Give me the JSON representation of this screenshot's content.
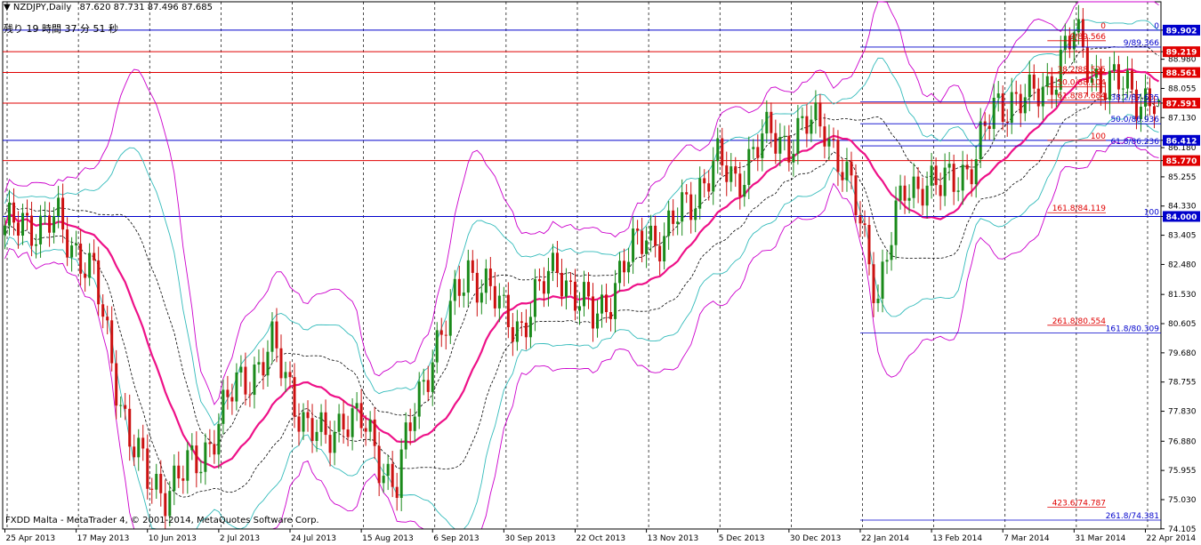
{
  "header": {
    "symbol": "NZDJPY,Daily",
    "ohlc": "87.620 87.731 87.496 87.685",
    "countdown": "残り 19 時間 37 分 51 秒"
  },
  "footer": "FXDD Malta - MetaTrader 4, © 2001-2014, MetaQuotes Software Corp.",
  "chart_data": {
    "type": "candlestick",
    "ylim": [
      74.1,
      90.8
    ],
    "price_ticks": [
      "89.902",
      "89.219",
      "88.980",
      "88.561",
      "88.055",
      "87.591",
      "87.130",
      "86.412",
      "86.180",
      "85.770",
      "85.255",
      "84.330",
      "84.000",
      "83.405",
      "82.480",
      "81.530",
      "80.605",
      "79.680",
      "78.755",
      "77.830",
      "76.880",
      "75.955",
      "75.030",
      "74.105"
    ],
    "price_tick_values": [
      89.902,
      89.219,
      88.98,
      88.561,
      88.055,
      87.591,
      87.13,
      86.412,
      86.18,
      85.77,
      85.255,
      84.33,
      84.0,
      83.405,
      82.48,
      81.53,
      80.605,
      79.68,
      78.755,
      77.83,
      76.88,
      75.955,
      75.03,
      74.105
    ],
    "highlighted_prices": [
      {
        "label": "89.902",
        "value": 89.902,
        "color": "#0000cc"
      },
      {
        "label": "89.219",
        "value": 89.219,
        "color": "#e00000"
      },
      {
        "label": "88.561",
        "value": 88.561,
        "color": "#e00000"
      },
      {
        "label": "87.591",
        "value": 87.591,
        "color": "#e00000"
      },
      {
        "label": "86.412",
        "value": 86.412,
        "color": "#0000cc"
      },
      {
        "label": "85.770",
        "value": 85.77,
        "color": "#e00000"
      },
      {
        "label": "84.000",
        "value": 84.0,
        "color": "#0000cc"
      }
    ],
    "date_labels": [
      "25 Apr 2013",
      "17 May 2013",
      "10 Jun 2013",
      "2 Jul 2013",
      "24 Jul 2013",
      "15 Aug 2013",
      "6 Sep 2013",
      "30 Sep 2013",
      "22 Oct 2013",
      "13 Nov 2013",
      "5 Dec 2013",
      "30 Dec 2013",
      "22 Jan 2014",
      "13 Feb 2014",
      "7 Mar 2014",
      "31 Mar 2014",
      "22 Apr 2014"
    ],
    "date_label_bars": [
      0,
      16,
      32,
      48,
      64,
      80,
      96,
      112,
      128,
      144,
      160,
      176,
      192,
      208,
      224,
      240,
      256
    ],
    "fibo_red": [
      {
        "label": "0",
        "value": 89.902
      },
      {
        "label": "9/89.566",
        "value": 89.566
      },
      {
        "label": "38.2/88.525",
        "value": 88.525
      },
      {
        "label": "50.0/88.104",
        "value": 88.104
      },
      {
        "label": "61.8/87.684",
        "value": 87.684
      },
      {
        "label": "100",
        "value": 86.412
      },
      {
        "label": "161.8/84.119",
        "value": 84.119
      },
      {
        "label": "261.8/80.554",
        "value": 80.554
      },
      {
        "label": "423.6/74.787",
        "value": 74.787
      }
    ],
    "fibo_blue": [
      {
        "label": "0",
        "value": 89.902
      },
      {
        "label": "9/89.366",
        "value": 89.366
      },
      {
        "label": "38.2/87.635",
        "value": 87.635
      },
      {
        "label": "50.0/86.936",
        "value": 86.936
      },
      {
        "label": "61.8/86.236",
        "value": 86.236
      },
      {
        "label": "100",
        "value": 84.0
      },
      {
        "label": "161.8/80.309",
        "value": 80.309
      },
      {
        "label": "261.8/74.381",
        "value": 74.381
      }
    ],
    "close_anchors": [
      [
        0,
        83.4
      ],
      [
        4,
        84.0
      ],
      [
        8,
        83.6
      ],
      [
        12,
        83.8
      ],
      [
        16,
        83.0
      ],
      [
        20,
        82.0
      ],
      [
        24,
        79.5
      ],
      [
        28,
        77.0
      ],
      [
        32,
        75.6
      ],
      [
        36,
        75.4
      ],
      [
        40,
        75.8
      ],
      [
        44,
        76.4
      ],
      [
        48,
        77.5
      ],
      [
        52,
        78.6
      ],
      [
        56,
        79.2
      ],
      [
        60,
        79.8
      ],
      [
        64,
        78.6
      ],
      [
        68,
        77.3
      ],
      [
        72,
        76.8
      ],
      [
        76,
        77.8
      ],
      [
        80,
        77.4
      ],
      [
        84,
        76.3
      ],
      [
        88,
        75.6
      ],
      [
        92,
        77.8
      ],
      [
        96,
        79.8
      ],
      [
        100,
        80.8
      ],
      [
        104,
        82.4
      ],
      [
        108,
        81.8
      ],
      [
        112,
        80.8
      ],
      [
        116,
        80.6
      ],
      [
        120,
        81.5
      ],
      [
        124,
        82.6
      ],
      [
        128,
        81.4
      ],
      [
        132,
        80.8
      ],
      [
        136,
        81.6
      ],
      [
        140,
        82.6
      ],
      [
        144,
        83.6
      ],
      [
        148,
        83.2
      ],
      [
        152,
        84.2
      ],
      [
        156,
        85.0
      ],
      [
        160,
        85.6
      ],
      [
        164,
        85.2
      ],
      [
        168,
        86.0
      ],
      [
        172,
        86.6
      ],
      [
        176,
        86.4
      ],
      [
        180,
        86.8
      ],
      [
        184,
        87.0
      ],
      [
        188,
        85.5
      ],
      [
        192,
        83.8
      ],
      [
        196,
        81.6
      ],
      [
        198,
        82.8
      ],
      [
        202,
        84.8
      ],
      [
        206,
        85.2
      ],
      [
        210,
        84.8
      ],
      [
        214,
        85.4
      ],
      [
        218,
        85.8
      ],
      [
        222,
        87.4
      ],
      [
        226,
        87.8
      ],
      [
        230,
        87.6
      ],
      [
        234,
        88.2
      ],
      [
        238,
        89.3
      ],
      [
        240,
        89.7
      ],
      [
        244,
        88.6
      ],
      [
        248,
        88.2
      ],
      [
        252,
        88.0
      ],
      [
        256,
        87.8
      ],
      [
        259,
        87.6
      ]
    ],
    "last_bar": [
      87.62,
      87.731,
      87.496,
      87.685
    ],
    "bars_total": 260,
    "grid": "vertical dotted at date labels"
  }
}
